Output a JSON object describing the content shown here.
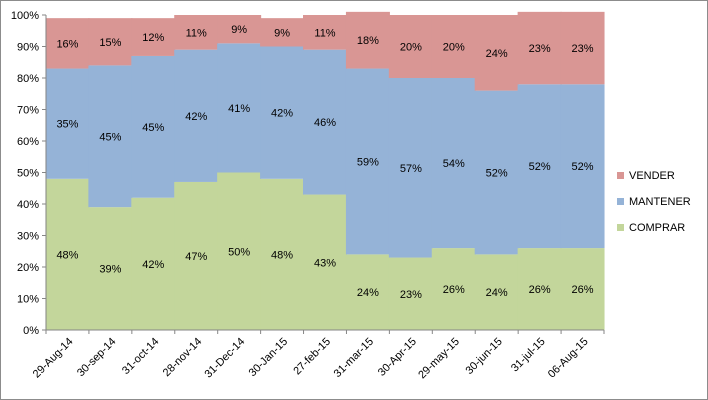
{
  "chart_data": {
    "type": "bar",
    "stacked": true,
    "percent_stacked": true,
    "categories": [
      "29-Aug-14",
      "30-sep-14",
      "31-oct-14",
      "28-nov-14",
      "31-Dec-14",
      "30-Jan-15",
      "27-feb-15",
      "31-mar-15",
      "30-Apr-15",
      "29-may-15",
      "30-jun-15",
      "31-jul-15",
      "06-Aug-15"
    ],
    "series": [
      {
        "name": "COMPRAR",
        "color": "#c3d69b",
        "values": [
          48,
          39,
          42,
          47,
          50,
          48,
          43,
          24,
          23,
          26,
          24,
          26,
          26
        ],
        "labels": [
          "48%",
          "39%",
          "42%",
          "47%",
          "50%",
          "48%",
          "43%",
          "24%",
          "23%",
          "26%",
          "24%",
          "26%",
          "26%"
        ]
      },
      {
        "name": "MANTENER",
        "color": "#95b3d7",
        "values": [
          35,
          45,
          45,
          42,
          41,
          42,
          46,
          59,
          57,
          54,
          52,
          52,
          52
        ],
        "labels": [
          "35%",
          "45%",
          "45%",
          "42%",
          "41%",
          "42%",
          "46%",
          "59%",
          "57%",
          "54%",
          "52%",
          "52%",
          "52%"
        ]
      },
      {
        "name": "VENDER",
        "color": "#d99694",
        "values": [
          16,
          15,
          12,
          11,
          9,
          9,
          11,
          18,
          20,
          20,
          24,
          23,
          23
        ],
        "labels": [
          "16%",
          "15%",
          "12%",
          "11%",
          "9%",
          "9%",
          "11%",
          "18%",
          "20%",
          "20%",
          "24%",
          "23%",
          "23%"
        ]
      }
    ],
    "ylim": [
      0,
      100
    ],
    "yticks": [
      "0%",
      "10%",
      "20%",
      "30%",
      "40%",
      "50%",
      "60%",
      "70%",
      "80%",
      "90%",
      "100%"
    ],
    "grid": false,
    "legend_position": "right"
  }
}
